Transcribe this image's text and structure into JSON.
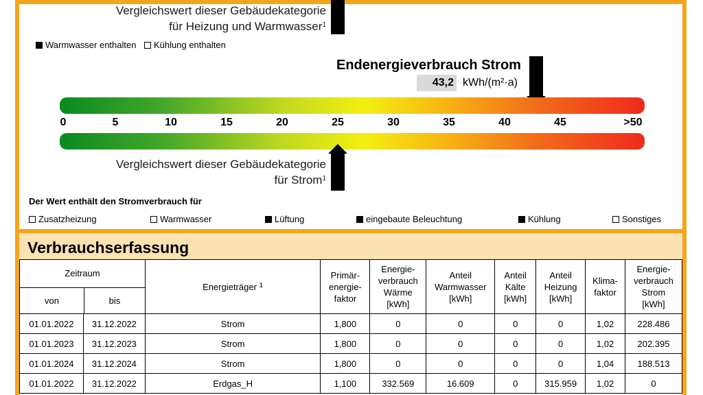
{
  "reference_heat": {
    "line1": "Vergleichswert dieser Gebäudekategorie",
    "line2": "für Heizung und Warmwasser",
    "footnote": "1"
  },
  "heat_options": [
    {
      "label": "Warmwasser enthalten",
      "checked": true
    },
    {
      "label": "Kühlung enthalten",
      "checked": false
    }
  ],
  "energy": {
    "title": "Endenergieverbrauch Strom",
    "value": "43,2",
    "unit": "kWh/(m²·a)"
  },
  "scale": {
    "ticks": [
      "0",
      "5",
      "10",
      "15",
      "20",
      "25",
      "30",
      "35",
      "40",
      "45",
      ">50"
    ],
    "value_marker": 43.2,
    "reference_marker": 25
  },
  "reference_strom": {
    "line1": "Vergleichswert dieser Gebäudekategorie",
    "line2": "für Strom",
    "footnote": "1"
  },
  "includes": {
    "title": "Der Wert enthält den Stromverbrauch für",
    "items": [
      {
        "label": "Zusatzheizung",
        "checked": false
      },
      {
        "label": "Warmwasser",
        "checked": false
      },
      {
        "label": "Lüftung",
        "checked": true
      },
      {
        "label": "eingebaute Beleuchtung",
        "checked": true
      },
      {
        "label": "Kühlung",
        "checked": true
      },
      {
        "label": "Sonstiges",
        "checked": false
      }
    ]
  },
  "section": {
    "title": "Verbrauchserfassung"
  },
  "table": {
    "headers": {
      "zeitraum": "Zeitraum",
      "von": "von",
      "bis": "bis",
      "energietraeger": "Energieträger",
      "energietraeger_fn": "1",
      "primaer": [
        "Primär-",
        "energie-",
        "faktor"
      ],
      "waerme": [
        "Energie-",
        "verbrauch",
        "Wärme",
        "[kWh]"
      ],
      "warmwasser": [
        "Anteil",
        "Warmwasser",
        "[kWh]"
      ],
      "kaelte": [
        "Anteil",
        "Kälte",
        "[kWh]"
      ],
      "heizung": [
        "Anteil",
        "Heizung",
        "[kWh]"
      ],
      "klima": [
        "Klima-",
        "faktor"
      ],
      "strom": [
        "Energie-",
        "verbrauch",
        "Strom",
        "[kWh]"
      ]
    },
    "rows": [
      [
        "01.01.2022",
        "31.12.2022",
        "Strom",
        "1,800",
        "0",
        "0",
        "0",
        "0",
        "1,02",
        "228.486"
      ],
      [
        "01.01.2023",
        "31.12.2023",
        "Strom",
        "1,800",
        "0",
        "0",
        "0",
        "0",
        "1,02",
        "202.395"
      ],
      [
        "01.01.2024",
        "31.12.2024",
        "Strom",
        "1,800",
        "0",
        "0",
        "0",
        "0",
        "1,04",
        "188.513"
      ],
      [
        "01.01.2022",
        "31.12.2022",
        "Erdgas_H",
        "1,100",
        "332.569",
        "16.609",
        "0",
        "315.959",
        "1,02",
        "0"
      ]
    ]
  }
}
